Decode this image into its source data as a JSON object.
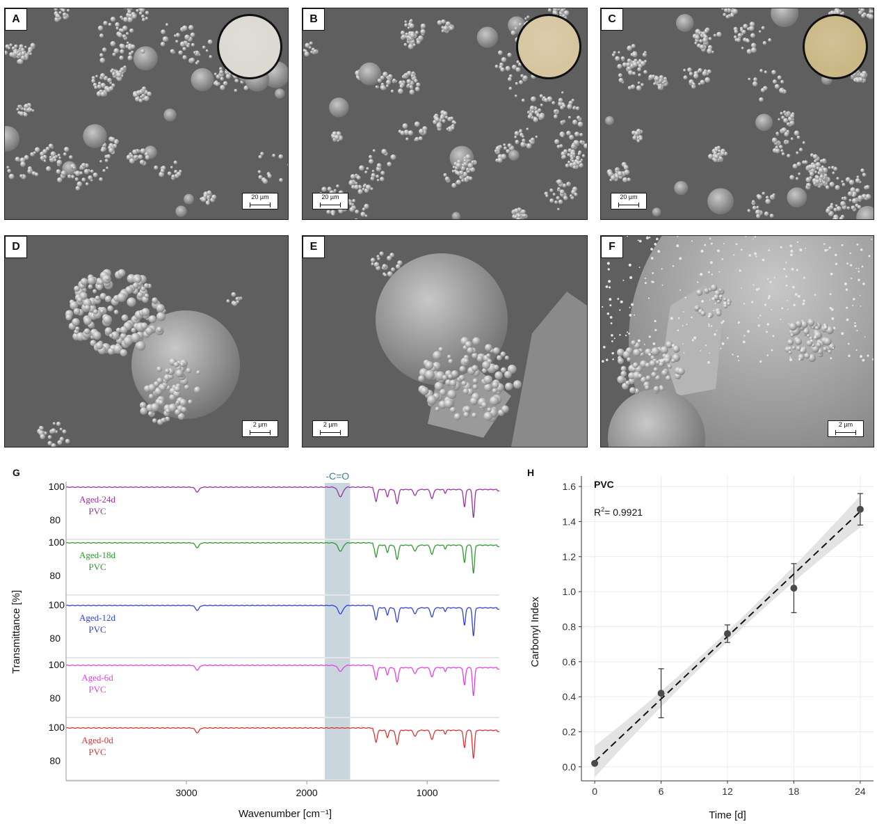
{
  "panels": {
    "A": {
      "label": "A",
      "scale": "20 µm",
      "inset_color": "#dcd8d2"
    },
    "B": {
      "label": "B",
      "scale": "20 µm",
      "inset_color": "#d6c6a0"
    },
    "C": {
      "label": "C",
      "scale": "20 µm",
      "inset_color": "#cbb887"
    },
    "D": {
      "label": "D",
      "scale": "2 µm"
    },
    "E": {
      "label": "E",
      "scale": "2 µm"
    },
    "F": {
      "label": "F",
      "scale": "2 µm"
    }
  },
  "panel_g": {
    "label": "G",
    "annotation": "-C=O",
    "band_color": "#c9d6de",
    "ylabel": "Transmittance [%]",
    "xlabel": "Wavenumber [cm⁻¹]",
    "xticks": [
      "3000",
      "2000",
      "1000"
    ],
    "tick_100": "100",
    "tick_80": "80",
    "series": [
      {
        "name_line1": "Aged-24d",
        "name_line2": "PVC",
        "color": "#9b2fa6"
      },
      {
        "name_line1": "Aged-18d",
        "name_line2": "PVC",
        "color": "#2f9a2f"
      },
      {
        "name_line1": "Aged-12d",
        "name_line2": "PVC",
        "color": "#2f3fe0"
      },
      {
        "name_line1": "Aged-6d",
        "name_line2": "PVC",
        "color": "#e83ee8"
      },
      {
        "name_line1": "Aged-0d",
        "name_line2": "PVC",
        "color": "#e03030"
      }
    ]
  },
  "panel_h": {
    "label": "H",
    "legend_title": "PVC",
    "r2_label": "R",
    "r2_sup": "2",
    "r2_value": "= 0.9921",
    "ylabel": "Carbonyl Index",
    "xlabel": "Time [d]"
  },
  "chart_data": [
    {
      "type": "line",
      "title": "",
      "xlabel": "Wavenumber [cm⁻¹]",
      "ylabel": "Transmittance [%]",
      "x_ticks": [
        3000,
        2000,
        1000
      ],
      "xlim": [
        4000,
        400
      ],
      "series": [
        {
          "name": "Aged-24d PVC",
          "minima_cm1": [
            2910,
            1720,
            1425,
            1250,
            960,
            690,
            615
          ]
        },
        {
          "name": "Aged-18d PVC",
          "minima_cm1": [
            2910,
            1720,
            1425,
            1250,
            960,
            690,
            615
          ]
        },
        {
          "name": "Aged-12d PVC",
          "minima_cm1": [
            2910,
            1720,
            1425,
            1250,
            960,
            690,
            615
          ]
        },
        {
          "name": "Aged-6d PVC",
          "minima_cm1": [
            2910,
            1720,
            1425,
            1250,
            960,
            690,
            615
          ]
        },
        {
          "name": "Aged-0d PVC",
          "minima_cm1": [
            2910,
            1425,
            1250,
            960,
            690,
            615
          ]
        }
      ],
      "annotation_band": {
        "label": "-C=O",
        "range_cm1": [
          1850,
          1640
        ]
      }
    },
    {
      "type": "scatter",
      "title": "PVC",
      "xlabel": "Time [d]",
      "ylabel": "Carbonyl Index",
      "x": [
        0,
        6,
        12,
        18,
        24
      ],
      "y": [
        0.02,
        0.42,
        0.76,
        1.02,
        1.47
      ],
      "error": [
        0.0,
        0.14,
        0.05,
        0.14,
        0.09
      ],
      "x_ticks": [
        0,
        6,
        12,
        18,
        24
      ],
      "y_ticks": [
        0.0,
        0.2,
        0.4,
        0.6,
        0.8,
        1.0,
        1.2,
        1.4,
        1.6
      ],
      "ylim": [
        -0.08,
        1.66
      ],
      "xlim": [
        -1.2,
        25.2
      ],
      "fit": {
        "type": "linear",
        "r2": 0.9921,
        "intercept": 0.03,
        "slope": 0.0595,
        "ci_halfwidth_ends": 0.09,
        "ci_halfwidth_mid": 0.03
      }
    }
  ]
}
